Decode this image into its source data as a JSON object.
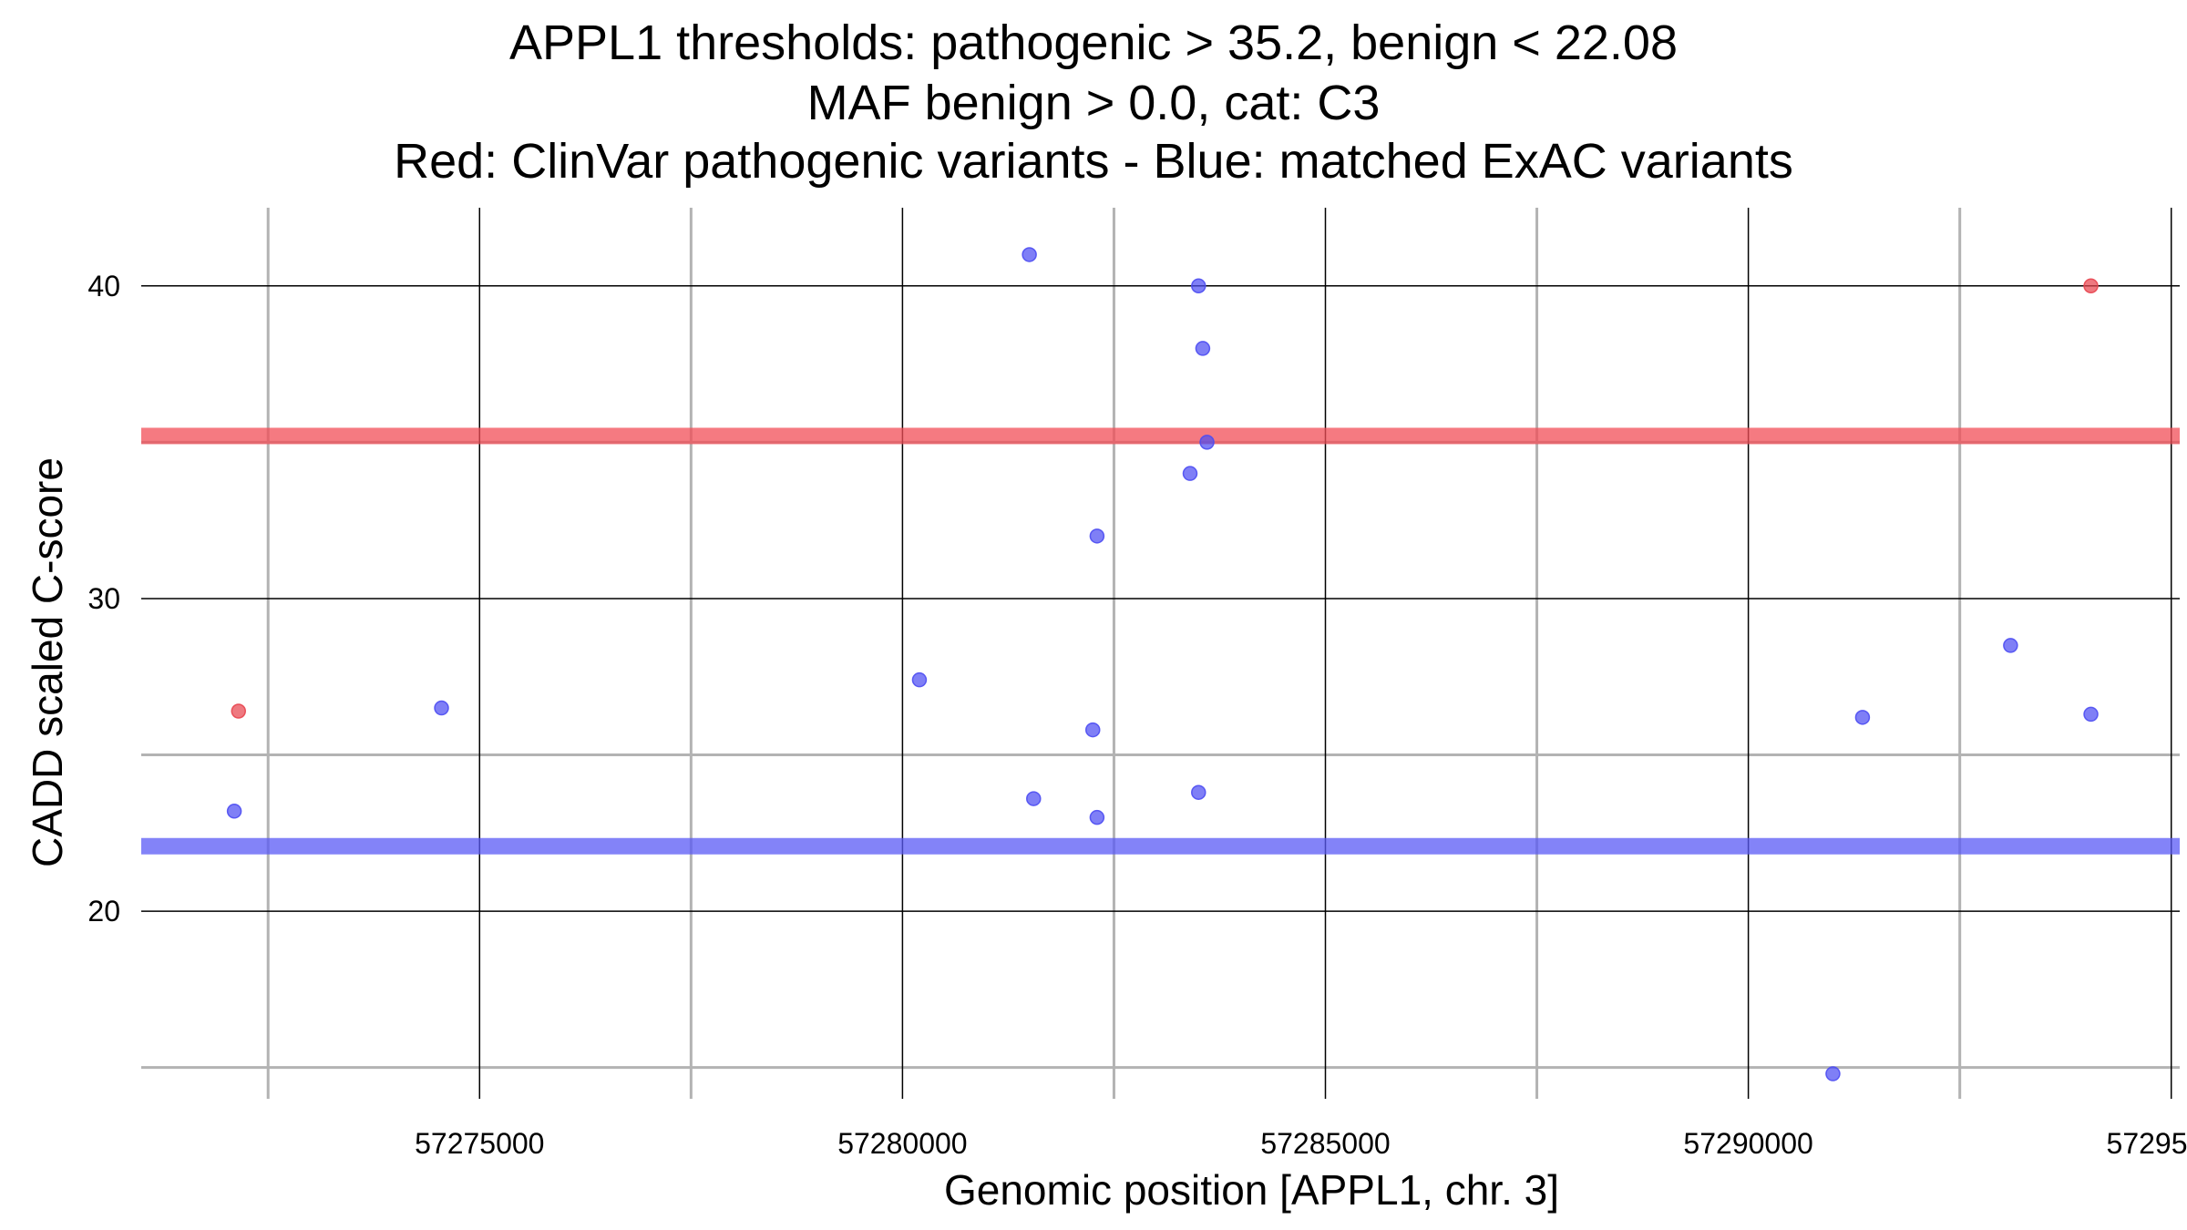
{
  "chart_data": {
    "type": "scatter",
    "title_lines": [
      "APPL1 thresholds: pathogenic > 35.2, benign < 22.08",
      "MAF benign > 0.0, cat: C3",
      "Red: ClinVar pathogenic variants - Blue: matched ExAC variants"
    ],
    "xlabel": "Genomic position [APPL1, chr. 3]",
    "ylabel": "CADD scaled C-score",
    "xlim": [
      57271000,
      57295100
    ],
    "ylim": [
      14.0,
      42.5
    ],
    "x_major_ticks": [
      57275000,
      57280000,
      57285000,
      57290000,
      57295000
    ],
    "x_tick_labels": [
      "57275000",
      "57280000",
      "57285000",
      "57290000",
      "57295000"
    ],
    "x_minor_ticks": [
      57272500,
      57277500,
      57282500,
      57287500,
      57292500
    ],
    "y_major_ticks": [
      20,
      30,
      40
    ],
    "y_tick_labels": [
      "20",
      "30",
      "40"
    ],
    "y_minor_ticks": [
      15,
      25,
      35
    ],
    "grid": true,
    "thresholds": [
      {
        "name": "pathogenic",
        "y": 35.2,
        "color": "#f24d57"
      },
      {
        "name": "benign",
        "y": 22.08,
        "color": "#5a5af5"
      }
    ],
    "series": [
      {
        "color": "#e8454f",
        "points": [
          {
            "x": 57272150,
            "y": 26.4
          },
          {
            "x": 57294050,
            "y": 40.0
          }
        ]
      },
      {
        "color": "#4d4df2",
        "points": [
          {
            "x": 57272100,
            "y": 23.2
          },
          {
            "x": 57274550,
            "y": 26.5
          },
          {
            "x": 57280200,
            "y": 27.4
          },
          {
            "x": 57281500,
            "y": 41.0
          },
          {
            "x": 57281550,
            "y": 23.6
          },
          {
            "x": 57282250,
            "y": 25.8
          },
          {
            "x": 57282300,
            "y": 32.0
          },
          {
            "x": 57282300,
            "y": 23.0
          },
          {
            "x": 57283400,
            "y": 34.0
          },
          {
            "x": 57283500,
            "y": 40.0
          },
          {
            "x": 57283500,
            "y": 23.8
          },
          {
            "x": 57283550,
            "y": 38.0
          },
          {
            "x": 57283600,
            "y": 35.0
          },
          {
            "x": 57291000,
            "y": 14.8
          },
          {
            "x": 57291350,
            "y": 26.2
          },
          {
            "x": 57293100,
            "y": 28.5
          },
          {
            "x": 57294050,
            "y": 26.3
          }
        ]
      }
    ]
  }
}
